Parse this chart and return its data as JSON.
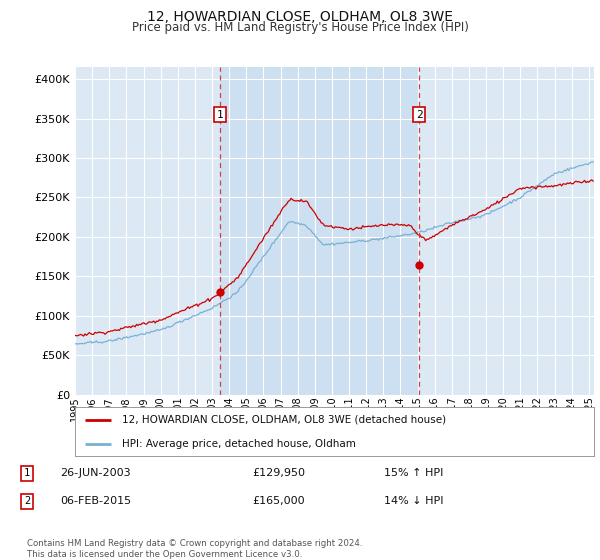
{
  "title": "12, HOWARDIAN CLOSE, OLDHAM, OL8 3WE",
  "subtitle": "Price paid vs. HM Land Registry's House Price Index (HPI)",
  "yticks": [
    0,
    50000,
    100000,
    150000,
    200000,
    250000,
    300000,
    350000,
    400000
  ],
  "ylim": [
    0,
    415000
  ],
  "xlim_start": 1995.0,
  "xlim_end": 2025.3,
  "background_color": "#ffffff",
  "plot_bg_color": "#dce9f5",
  "shading_color": "#c8ddf0",
  "grid_color": "#ffffff",
  "red_line_color": "#cc0000",
  "blue_line_color": "#7ab0d4",
  "marker1_x": 2003.484,
  "marker1_y": 129950,
  "marker2_x": 2015.09,
  "marker2_y": 165000,
  "annotation1_label": "1",
  "annotation2_label": "2",
  "legend_line1": "12, HOWARDIAN CLOSE, OLDHAM, OL8 3WE (detached house)",
  "legend_line2": "HPI: Average price, detached house, Oldham",
  "note1_num": "1",
  "note1_date": "26-JUN-2003",
  "note1_price": "£129,950",
  "note1_hpi": "15% ↑ HPI",
  "note2_num": "2",
  "note2_date": "06-FEB-2015",
  "note2_price": "£165,000",
  "note2_hpi": "14% ↓ HPI",
  "footer": "Contains HM Land Registry data © Crown copyright and database right 2024.\nThis data is licensed under the Open Government Licence v3.0."
}
